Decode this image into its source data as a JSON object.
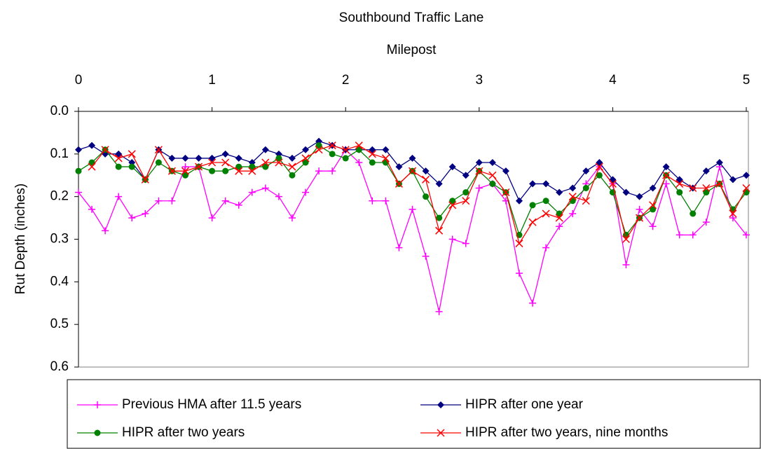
{
  "chart_data": {
    "type": "line",
    "title": "Southbound Traffic Lane",
    "x_label": "Milepost",
    "y_label": "Rut Depth (inches)",
    "x_axis_position": "top",
    "y_inverted": true,
    "xlim": [
      0,
      5
    ],
    "xticks": [
      0,
      1,
      2,
      3,
      4,
      5
    ],
    "ylim": [
      0,
      0.6
    ],
    "yticks": [
      {
        "value": 0,
        "label": "0.0"
      },
      0.1,
      0.2,
      0.3,
      0.4,
      0.5,
      0.6
    ],
    "legend": "bottom",
    "x": [
      0,
      0.1,
      0.2,
      0.3,
      0.4,
      0.5,
      0.6,
      0.7,
      0.8,
      0.9,
      1,
      1.1,
      1.2,
      1.3,
      1.4,
      1.5,
      1.6,
      1.7,
      1.8,
      1.9,
      2,
      2.1,
      2.2,
      2.3,
      2.4,
      2.5,
      2.6,
      2.7,
      2.8,
      2.9,
      3,
      3.1,
      3.2,
      3.3,
      3.4,
      3.5,
      3.6,
      3.7,
      3.8,
      3.9,
      4,
      4.1,
      4.2,
      4.3,
      4.4,
      4.5,
      4.6,
      4.7,
      4.8,
      4.9,
      5
    ],
    "series": [
      {
        "name": "Previous HMA after 11.5 years",
        "color": "#ff00ff",
        "marker": "plus",
        "values": [
          0.19,
          0.23,
          0.28,
          0.2,
          0.25,
          0.24,
          0.21,
          0.21,
          0.13,
          0.13,
          0.25,
          0.21,
          0.22,
          0.19,
          0.18,
          0.2,
          0.25,
          0.19,
          0.14,
          0.14,
          0.09,
          0.12,
          0.21,
          0.21,
          0.32,
          0.23,
          0.34,
          0.47,
          0.3,
          0.31,
          0.18,
          0.17,
          0.21,
          0.38,
          0.45,
          0.32,
          0.27,
          0.24,
          0.17,
          0.13,
          0.17,
          0.36,
          0.23,
          0.27,
          0.17,
          0.29,
          0.29,
          0.26,
          0.13,
          0.25,
          0.29
        ]
      },
      {
        "name": "HIPR after one year",
        "color": "#000080",
        "marker": "diamond",
        "values": [
          0.09,
          0.08,
          0.1,
          0.1,
          0.12,
          0.16,
          0.09,
          0.11,
          0.11,
          0.11,
          0.11,
          0.1,
          0.11,
          0.12,
          0.09,
          0.1,
          0.11,
          0.09,
          0.07,
          0.08,
          0.09,
          0.09,
          0.09,
          0.09,
          0.13,
          0.11,
          0.14,
          0.17,
          0.13,
          0.15,
          0.12,
          0.12,
          0.14,
          0.21,
          0.17,
          0.17,
          0.19,
          0.18,
          0.14,
          0.12,
          0.16,
          0.19,
          0.2,
          0.18,
          0.13,
          0.16,
          0.18,
          0.14,
          0.12,
          0.16,
          0.15
        ]
      },
      {
        "name": "HIPR after two years",
        "color": "#008000",
        "marker": "circle",
        "values": [
          0.14,
          0.12,
          0.09,
          0.13,
          0.13,
          0.16,
          0.12,
          0.14,
          0.15,
          0.13,
          0.14,
          0.14,
          0.13,
          0.13,
          0.13,
          0.11,
          0.15,
          0.12,
          0.08,
          0.1,
          0.11,
          0.09,
          0.12,
          0.12,
          0.17,
          0.14,
          0.2,
          0.25,
          0.21,
          0.19,
          0.14,
          0.17,
          0.19,
          0.29,
          0.22,
          0.21,
          0.24,
          0.21,
          0.18,
          0.15,
          0.19,
          0.29,
          0.25,
          0.23,
          0.15,
          0.19,
          0.24,
          0.19,
          0.17,
          0.23,
          0.19
        ]
      },
      {
        "name": "HIPR after two years, nine months",
        "color": "#ff0000",
        "marker": "cross",
        "values": [
          null,
          0.13,
          0.09,
          0.11,
          0.1,
          0.16,
          0.09,
          0.14,
          0.14,
          0.13,
          0.12,
          0.12,
          0.14,
          0.14,
          0.12,
          0.12,
          0.13,
          0.11,
          0.09,
          0.08,
          0.09,
          0.08,
          0.1,
          0.11,
          0.17,
          0.14,
          0.16,
          0.28,
          0.22,
          0.21,
          0.14,
          0.15,
          0.19,
          0.31,
          0.26,
          0.24,
          0.25,
          0.2,
          0.21,
          0.13,
          0.17,
          0.3,
          0.25,
          0.22,
          0.15,
          0.17,
          0.18,
          0.18,
          0.17,
          0.24,
          0.18
        ]
      }
    ]
  }
}
